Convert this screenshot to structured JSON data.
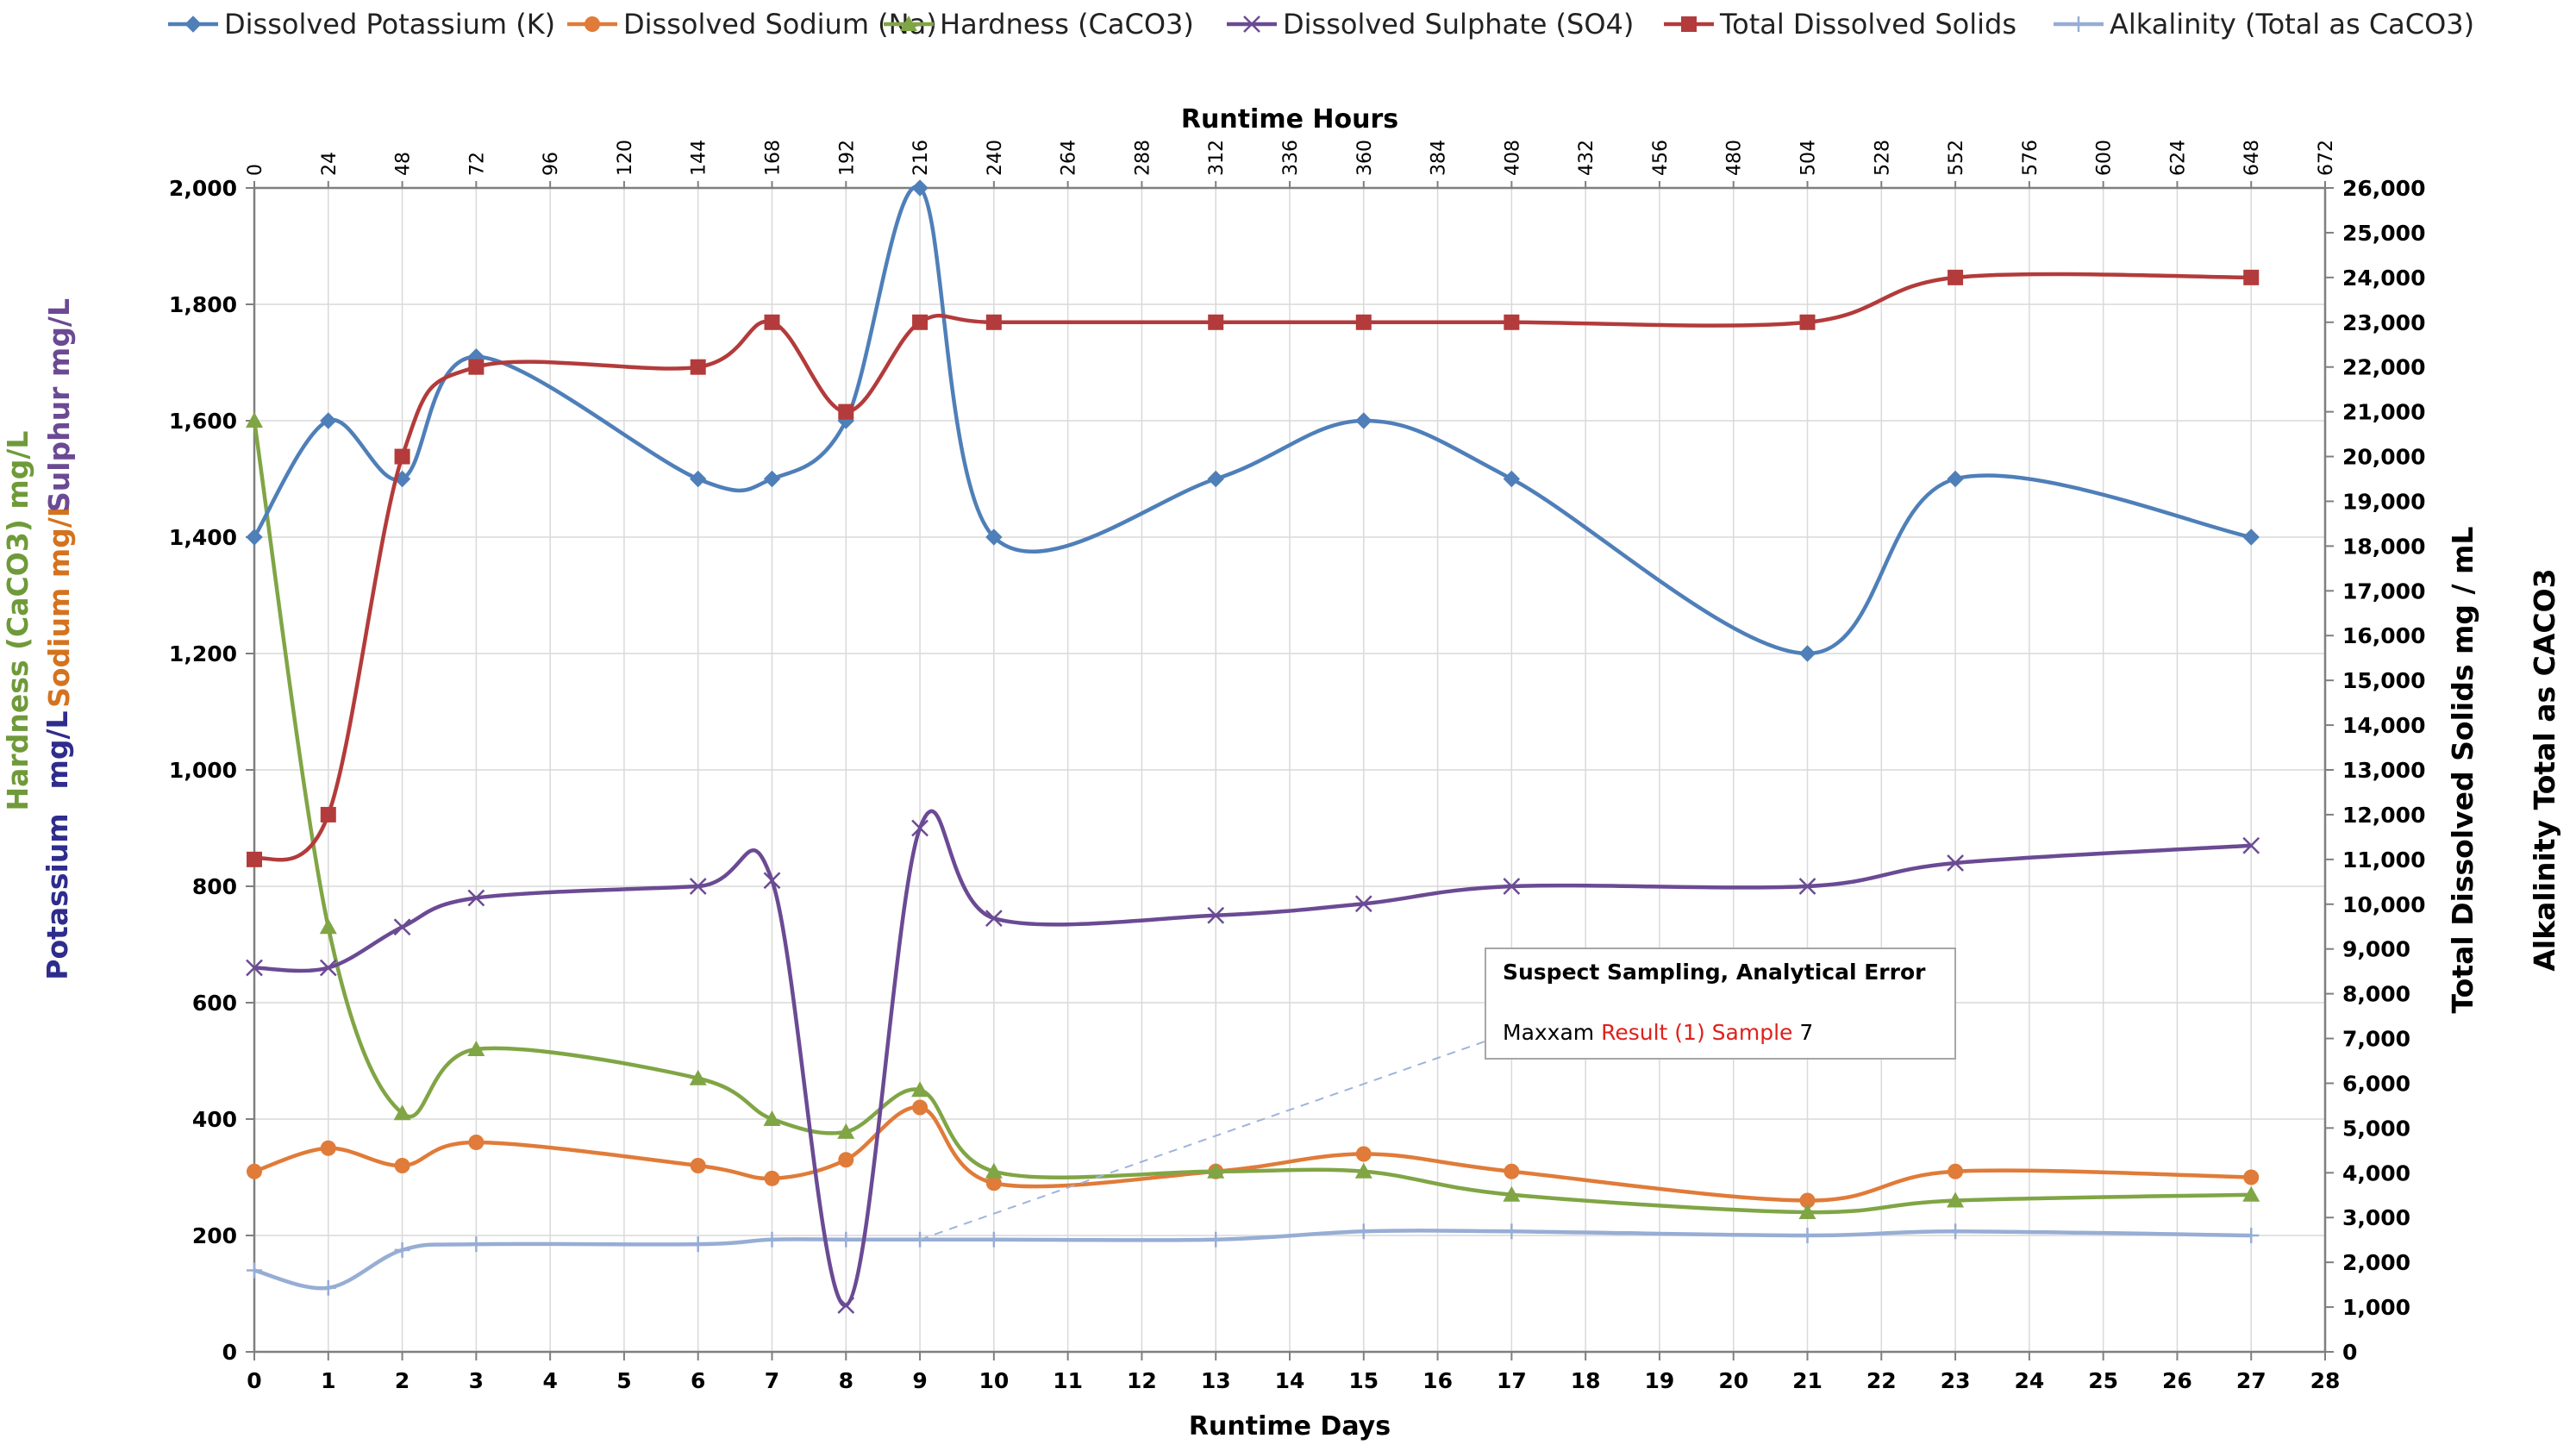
{
  "chart_data": {
    "type": "line",
    "x": [
      0,
      1,
      2,
      3,
      6,
      7,
      8,
      9,
      10,
      13,
      15,
      17,
      21,
      23,
      27
    ],
    "series": [
      {
        "name": "Dissolved Potassium (K)",
        "axis": "left",
        "marker": "diamond",
        "color": "#4f7fb9",
        "values": [
          1400,
          1600,
          1500,
          1710,
          1500,
          1500,
          1600,
          2000,
          1400,
          1500,
          1600,
          1500,
          1200,
          1500,
          1400
        ]
      },
      {
        "name": "Dissolved Sodium (Na)",
        "axis": "left",
        "marker": "circle",
        "color": "#e07b39",
        "values": [
          310,
          350,
          320,
          360,
          320,
          298,
          330,
          420,
          290,
          310,
          340,
          310,
          260,
          310,
          300
        ]
      },
      {
        "name": "Hardness (CaCO3)",
        "axis": "left",
        "marker": "triangle",
        "color": "#80a545",
        "values": [
          1600,
          730,
          410,
          520,
          470,
          400,
          378,
          450,
          310,
          310,
          310,
          270,
          240,
          260,
          270
        ]
      },
      {
        "name": "Dissolved Sulphate (SO4)",
        "axis": "left",
        "marker": "x",
        "color": "#6b4a94",
        "values": [
          660,
          660,
          730,
          780,
          800,
          810,
          80,
          900,
          745,
          750,
          770,
          800,
          800,
          840,
          870
        ]
      },
      {
        "name": "Total Dissolved Solids",
        "axis": "right",
        "marker": "square",
        "color": "#b33b3b",
        "values": [
          11000,
          12000,
          20000,
          22000,
          22000,
          23000,
          21000,
          23000,
          23000,
          23000,
          23000,
          23000,
          23000,
          24000,
          24000
        ]
      },
      {
        "name": "Alkalinity (Total as CaCO3)",
        "axis": "left",
        "marker": "plus",
        "color": "#97add4",
        "values": [
          140,
          110,
          175,
          185,
          185,
          193,
          193,
          193,
          193,
          193,
          207,
          207,
          200,
          207,
          200
        ]
      }
    ],
    "xlabel": "Runtime Days",
    "x2label": "Runtime Hours",
    "xlim": [
      0,
      28
    ],
    "x_ticks": [
      0,
      1,
      2,
      3,
      4,
      5,
      6,
      7,
      8,
      9,
      10,
      11,
      12,
      13,
      14,
      15,
      16,
      17,
      18,
      19,
      20,
      21,
      22,
      23,
      24,
      25,
      26,
      27,
      28
    ],
    "x2_ticks": [
      0,
      24,
      48,
      72,
      96,
      120,
      144,
      168,
      192,
      216,
      240,
      264,
      288,
      312,
      336,
      360,
      384,
      408,
      432,
      456,
      480,
      504,
      528,
      552,
      576,
      600,
      624,
      648,
      672
    ],
    "ylim": [
      0,
      2000
    ],
    "y_ticks": [
      "0",
      "200",
      "400",
      "600",
      "800",
      "1,000",
      "1,200",
      "1,400",
      "1,600",
      "1,800",
      "2,000"
    ],
    "y2lim": [
      0,
      26000
    ],
    "y2_ticks": [
      "0",
      "1,000",
      "2,000",
      "3,000",
      "4,000",
      "5,000",
      "6,000",
      "7,000",
      "8,000",
      "9,000",
      "10,000",
      "11,000",
      "12,000",
      "13,000",
      "14,000",
      "15,000",
      "16,000",
      "17,000",
      "18,000",
      "19,000",
      "20,000",
      "21,000",
      "22,000",
      "23,000",
      "24,000",
      "25,000",
      "26,000"
    ],
    "y2label": "Total Dissolved Solids mg / mL",
    "y3label": "Alkalinity Total as CACO3",
    "ylabels": [
      {
        "text": "Hardness (CaCO3) mg/L",
        "color": "#6f9a3a"
      },
      {
        "text": "Sodium mg/L",
        "color": "#d4731f"
      },
      {
        "text": "Sulphur mg/L",
        "color": "#6b4a94"
      },
      {
        "text": "Potassium",
        "color": "#2e2c8c"
      },
      {
        "text": "mg/L",
        "color": "#2e2c8c"
      }
    ],
    "legend_position": "top",
    "grid": true,
    "annotation": {
      "title": "Suspect Sampling, Analytical Error",
      "line_parts": [
        {
          "text": "Maxxam ",
          "color": "#000000"
        },
        {
          "text": "Result (1) Sample",
          "color": "#e0201b"
        },
        {
          "text": " 7",
          "color": "#000000"
        }
      ],
      "pointer_x": 9,
      "pointer_y": 193
    }
  },
  "colors": {
    "legend_first_label": "#c0392b",
    "y2label": "#b33b3b",
    "y3label": "#7f9fc9",
    "grid": "#d9d9d9"
  }
}
